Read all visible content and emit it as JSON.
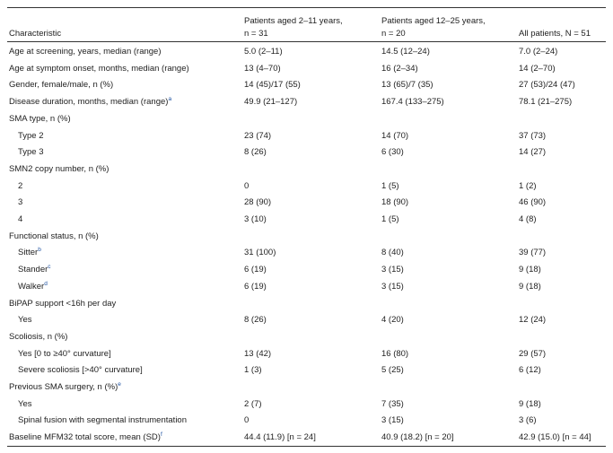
{
  "table": {
    "header": [
      [
        "Characteristic"
      ],
      [
        "Patients aged 2–11 years,",
        "n = 31"
      ],
      [
        "Patients aged 12–25 years,",
        "n = 20"
      ],
      [
        "All patients, N = 51"
      ]
    ],
    "rows": [
      {
        "label": "Age at screening, years, median (range)",
        "cells": [
          "5.0 (2–11)",
          "14.5 (12–24)",
          "7.0 (2–24)"
        ]
      },
      {
        "label": "Age at symptom onset, months, median (range)",
        "cells": [
          "13 (4–70)",
          "16 (2–34)",
          "14 (2–70)"
        ]
      },
      {
        "label": "Gender, female/male, n (%)",
        "cells": [
          "14 (45)/17 (55)",
          "13 (65)/7 (35)",
          "27 (53)/24 (47)"
        ]
      },
      {
        "label": "Disease duration, months, median (range)",
        "sup": "a",
        "cells": [
          "49.9 (21–127)",
          "167.4 (133–275)",
          "78.1 (21–275)"
        ]
      },
      {
        "label": "SMA type, n (%)"
      },
      {
        "label": "Type 2",
        "indent": true,
        "cells": [
          "23 (74)",
          "14 (70)",
          "37 (73)"
        ]
      },
      {
        "label": "Type 3",
        "indent": true,
        "cells": [
          "8 (26)",
          "6 (30)",
          "14 (27)"
        ]
      },
      {
        "label": "SMN2 copy number, n (%)"
      },
      {
        "label": "2",
        "indent": true,
        "cells": [
          "0",
          "1 (5)",
          "1 (2)"
        ]
      },
      {
        "label": "3",
        "indent": true,
        "cells": [
          "28 (90)",
          "18 (90)",
          "46 (90)"
        ]
      },
      {
        "label": "4",
        "indent": true,
        "cells": [
          "3 (10)",
          "1 (5)",
          "4 (8)"
        ]
      },
      {
        "label": "Functional status, n (%)"
      },
      {
        "label": "Sitter",
        "sup": "b",
        "indent": true,
        "cells": [
          "31 (100)",
          "8 (40)",
          "39 (77)"
        ]
      },
      {
        "label": "Stander",
        "sup": "c",
        "indent": true,
        "cells": [
          "6 (19)",
          "3 (15)",
          "9 (18)"
        ]
      },
      {
        "label": "Walker",
        "sup": "d",
        "indent": true,
        "cells": [
          "6 (19)",
          "3 (15)",
          "9 (18)"
        ]
      },
      {
        "label": "BiPAP support <16h per day"
      },
      {
        "label": "Yes",
        "indent": true,
        "cells": [
          "8 (26)",
          "4 (20)",
          "12 (24)"
        ]
      },
      {
        "label": "Scoliosis, n (%)"
      },
      {
        "label": "Yes [0 to ≥40° curvature]",
        "indent": true,
        "cells": [
          "13 (42)",
          "16 (80)",
          "29 (57)"
        ]
      },
      {
        "label": "Severe scoliosis [>40° curvature]",
        "indent": true,
        "cells": [
          "1 (3)",
          "5 (25)",
          "6 (12)"
        ]
      },
      {
        "label": "Previous SMA surgery, n (%)",
        "sup": "e"
      },
      {
        "label": "Yes",
        "indent": true,
        "cells": [
          "2 (7)",
          "7 (35)",
          "9 (18)"
        ]
      },
      {
        "label": "Spinal fusion with segmental instrumentation",
        "indent": true,
        "cells": [
          "0",
          "3 (15)",
          "3 (6)"
        ]
      },
      {
        "label": "Baseline MFM32 total score, mean (SD)",
        "sup": "f",
        "cells": [
          "44.4 (11.9) [n = 24]",
          "40.9 (18.2) [n = 20]",
          "42.9 (15.0) [n = 44]"
        ]
      }
    ]
  }
}
